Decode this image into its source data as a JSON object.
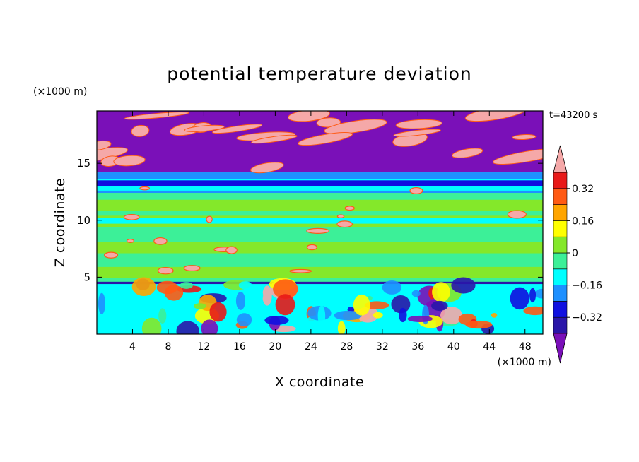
{
  "chart_data": {
    "type": "heatmap",
    "title": "potential temperature deviation",
    "xlabel": "X coordinate",
    "ylabel": "Z coordinate",
    "x_unit": "(×1000 m)",
    "y_unit": "(×1000 m)",
    "time_label": "t=43200 s",
    "xlim": [
      0,
      50
    ],
    "ylim": [
      0,
      19.6
    ],
    "x_ticks": [
      "4",
      "8",
      "12",
      "16",
      "20",
      "24",
      "28",
      "32",
      "36",
      "40",
      "44",
      "48"
    ],
    "y_ticks": [
      "5",
      "10",
      "15"
    ],
    "x_tick_values": [
      4,
      8,
      12,
      16,
      20,
      24,
      28,
      32,
      36,
      40,
      44,
      48
    ],
    "y_tick_values": [
      5,
      10,
      15
    ],
    "colorbar": {
      "levels": [
        -0.4,
        -0.32,
        -0.24,
        -0.16,
        -0.08,
        0,
        0.08,
        0.16,
        0.24,
        0.32,
        0.4
      ],
      "tick_labels": [
        "0.32",
        "0.16",
        "0",
        "−0.16",
        "−0.32"
      ],
      "tick_values": [
        0.32,
        0.16,
        0,
        -0.16,
        -0.32
      ],
      "colors": [
        "#7a10b8",
        "#2a16a8",
        "#1010e0",
        "#1e90ff",
        "#00ffff",
        "#3cf098",
        "#84e82a",
        "#ffff00",
        "#ffa500",
        "#ff5a14",
        "#e81818",
        "#f5a8a8"
      ],
      "extend": "both"
    },
    "grid": false
  }
}
